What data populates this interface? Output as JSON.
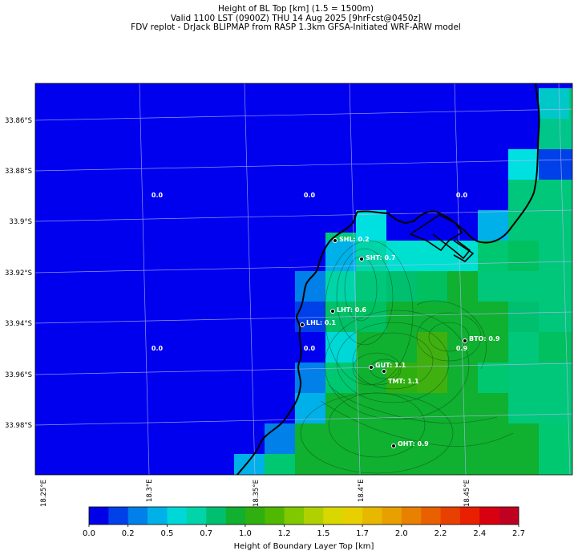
{
  "titles": {
    "line1": "Height of BL Top [km] (1.5 = 1500m)",
    "line2": "Valid 1100 LST (0900Z) THU 14 Aug 2025 [9hrFcst@0450z]",
    "line3": "FDV replot - DrJack BLIPMAP from RASP 1.3km GFSA-Initiated WRF-ARW model"
  },
  "lat_labels": [
    "33.86°S",
    "33.88°S",
    "33.9°S",
    "33.92°S",
    "33.94°S",
    "33.96°S",
    "33.98°S"
  ],
  "lon_labels": [
    "18.25°E",
    "18.3°E",
    "18.35°E",
    "18.4°E",
    "18.45°E"
  ],
  "stations": [
    {
      "name": "SHL: 0.2"
    },
    {
      "name": "SHT: 0.7"
    },
    {
      "name": "LHT: 0.6"
    },
    {
      "name": "LHL: 0.1"
    },
    {
      "name": "BTO: 0.9"
    },
    {
      "name": "GUT: 1.1"
    },
    {
      "name": "TMT: 1.1"
    },
    {
      "name": "OHT: 0.9"
    }
  ],
  "grid_values": [
    "0.0",
    "0.0",
    "0.0",
    "0.0",
    "0.0",
    "0.9"
  ],
  "colorbar": {
    "label": "Height of Boundary Layer Top [km]",
    "ticks": [
      "0.0",
      "0.2",
      "0.5",
      "0.7",
      "1.0",
      "1.2",
      "1.5",
      "1.7",
      "2.0",
      "2.2",
      "2.4",
      "2.7"
    ],
    "colors": [
      "#0000e8",
      "#0040e8",
      "#0080e8",
      "#00b0e8",
      "#00d8d8",
      "#00d4a8",
      "#00c070",
      "#10b030",
      "#30b010",
      "#50b800",
      "#80c800",
      "#b0d000",
      "#d8d800",
      "#e8d000",
      "#e8b800",
      "#e8a000",
      "#e88000",
      "#e86000",
      "#e84000",
      "#e82000",
      "#d80010",
      "#c00020"
    ]
  }
}
